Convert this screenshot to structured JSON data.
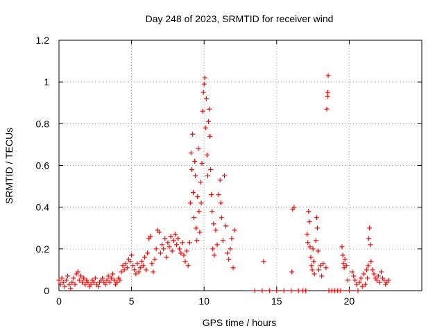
{
  "chart_data": {
    "type": "scatter",
    "title": "Day 248 of 2023, SRMTID for receiver wind",
    "xlabel": "GPS time / hours",
    "ylabel": "SRMTID / TECUs",
    "xlim": [
      0,
      25
    ],
    "ylim": [
      0,
      1.2
    ],
    "xticks": [
      0,
      5,
      10,
      15,
      20
    ],
    "xtick_labels": [
      "0",
      "5",
      "10",
      "15",
      "20"
    ],
    "yticks": [
      0,
      0.2,
      0.4,
      0.6,
      0.8,
      1,
      1.2
    ],
    "ytick_labels": [
      "0",
      "0.2",
      "0.4",
      "0.6",
      "0.8",
      "1",
      "1.2"
    ],
    "grid": true,
    "marker": "+",
    "series": [
      {
        "name": "wind",
        "color": "#ff0000",
        "points": [
          [
            0.0,
            0.05
          ],
          [
            0.1,
            0.03
          ],
          [
            0.2,
            0.06
          ],
          [
            0.3,
            0.04
          ],
          [
            0.4,
            0.02
          ],
          [
            0.5,
            0.05
          ],
          [
            0.6,
            0.07
          ],
          [
            0.7,
            0.03
          ],
          [
            0.8,
            0.01
          ],
          [
            0.9,
            0.04
          ],
          [
            1.0,
            0.06
          ],
          [
            1.1,
            0.03
          ],
          [
            1.2,
            0.08
          ],
          [
            1.3,
            0.09
          ],
          [
            1.4,
            0.05
          ],
          [
            1.5,
            0.07
          ],
          [
            1.6,
            0.04
          ],
          [
            1.7,
            0.06
          ],
          [
            1.8,
            0.03
          ],
          [
            1.9,
            0.05
          ],
          [
            2.0,
            0.04
          ],
          [
            2.1,
            0.02
          ],
          [
            2.2,
            0.03
          ],
          [
            2.3,
            0.05
          ],
          [
            2.4,
            0.04
          ],
          [
            2.5,
            0.06
          ],
          [
            2.6,
            0.03
          ],
          [
            2.7,
            0.02
          ],
          [
            2.8,
            0.04
          ],
          [
            2.9,
            0.05
          ],
          [
            3.0,
            0.06
          ],
          [
            3.1,
            0.04
          ],
          [
            3.2,
            0.03
          ],
          [
            3.3,
            0.05
          ],
          [
            3.4,
            0.07
          ],
          [
            3.5,
            0.04
          ],
          [
            3.6,
            0.06
          ],
          [
            3.7,
            0.08
          ],
          [
            3.8,
            0.05
          ],
          [
            3.9,
            0.03
          ],
          [
            4.0,
            0.04
          ],
          [
            4.1,
            0.06
          ],
          [
            4.2,
            0.05
          ],
          [
            4.3,
            0.09
          ],
          [
            4.4,
            0.12
          ],
          [
            4.5,
            0.1
          ],
          [
            4.6,
            0.13
          ],
          [
            4.7,
            0.11
          ],
          [
            4.8,
            0.15
          ],
          [
            4.9,
            0.14
          ],
          [
            5.0,
            0.17
          ],
          [
            5.1,
            0.12
          ],
          [
            5.2,
            0.1
          ],
          [
            5.3,
            0.08
          ],
          [
            5.4,
            0.13
          ],
          [
            5.5,
            0.09
          ],
          [
            5.6,
            0.11
          ],
          [
            5.7,
            0.14
          ],
          [
            5.8,
            0.12
          ],
          [
            5.9,
            0.16
          ],
          [
            6.0,
            0.1
          ],
          [
            6.1,
            0.18
          ],
          [
            6.2,
            0.25
          ],
          [
            6.3,
            0.26
          ],
          [
            6.4,
            0.13
          ],
          [
            6.5,
            0.09
          ],
          [
            6.6,
            0.15
          ],
          [
            6.7,
            0.2
          ],
          [
            6.8,
            0.29
          ],
          [
            6.9,
            0.28
          ],
          [
            7.0,
            0.18
          ],
          [
            7.1,
            0.22
          ],
          [
            7.2,
            0.2
          ],
          [
            7.3,
            0.25
          ],
          [
            7.4,
            0.16
          ],
          [
            7.5,
            0.23
          ],
          [
            7.6,
            0.21
          ],
          [
            7.7,
            0.26
          ],
          [
            7.8,
            0.19
          ],
          [
            7.9,
            0.24
          ],
          [
            8.0,
            0.27
          ],
          [
            8.1,
            0.22
          ],
          [
            8.2,
            0.25
          ],
          [
            8.3,
            0.2
          ],
          [
            8.4,
            0.18
          ],
          [
            8.5,
            0.23
          ],
          [
            8.6,
            0.17
          ],
          [
            8.7,
            0.14
          ],
          [
            8.8,
            0.19
          ],
          [
            8.9,
            0.12
          ],
          [
            9.0,
            0.23
          ],
          [
            9.05,
            0.42
          ],
          [
            9.1,
            0.66
          ],
          [
            9.15,
            0.58
          ],
          [
            9.2,
            0.75
          ],
          [
            9.25,
            0.47
          ],
          [
            9.3,
            0.35
          ],
          [
            9.35,
            0.62
          ],
          [
            9.4,
            0.55
          ],
          [
            9.45,
            0.3
          ],
          [
            9.5,
            0.24
          ],
          [
            9.55,
            0.45
          ],
          [
            9.6,
            0.68
          ],
          [
            9.65,
            0.38
          ],
          [
            9.7,
            0.28
          ],
          [
            9.75,
            0.52
          ],
          [
            9.8,
            0.42
          ],
          [
            9.85,
            0.61
          ],
          [
            9.9,
            0.86
          ],
          [
            9.95,
            0.95
          ],
          [
            10.0,
            0.99
          ],
          [
            10.05,
            1.02
          ],
          [
            10.1,
            0.78
          ],
          [
            10.15,
            0.92
          ],
          [
            10.2,
            0.65
          ],
          [
            10.25,
            0.55
          ],
          [
            10.3,
            0.81
          ],
          [
            10.35,
            0.87
          ],
          [
            10.4,
            0.74
          ],
          [
            10.45,
            0.58
          ],
          [
            10.5,
            0.46
          ],
          [
            10.55,
            0.38
          ],
          [
            10.6,
            0.2
          ],
          [
            10.65,
            0.32
          ],
          [
            10.7,
            0.17
          ],
          [
            10.8,
            0.29
          ],
          [
            10.9,
            0.22
          ],
          [
            11.0,
            0.46
          ],
          [
            11.1,
            0.53
          ],
          [
            11.15,
            0.42
          ],
          [
            11.2,
            0.35
          ],
          [
            11.3,
            0.24
          ],
          [
            11.4,
            0.55
          ],
          [
            11.5,
            0.31
          ],
          [
            11.6,
            0.18
          ],
          [
            11.7,
            0.15
          ],
          [
            11.8,
            0.2
          ],
          [
            11.9,
            0.25
          ],
          [
            12.0,
            0.11
          ],
          [
            12.1,
            0.29
          ],
          [
            13.5,
            0.0
          ],
          [
            14.0,
            0.0
          ],
          [
            14.1,
            0.14
          ],
          [
            14.5,
            0.0
          ],
          [
            15.0,
            0.0
          ],
          [
            15.5,
            0.0
          ],
          [
            16.0,
            0.0
          ],
          [
            16.05,
            0.09
          ],
          [
            16.1,
            0.39
          ],
          [
            16.2,
            0.4
          ],
          [
            16.5,
            0.0
          ],
          [
            16.8,
            0.0
          ],
          [
            17.0,
            0.0
          ],
          [
            17.1,
            0.27
          ],
          [
            17.15,
            0.23
          ],
          [
            17.2,
            0.38
          ],
          [
            17.25,
            0.33
          ],
          [
            17.3,
            0.21
          ],
          [
            17.35,
            0.16
          ],
          [
            17.4,
            0.12
          ],
          [
            17.45,
            0.1
          ],
          [
            17.5,
            0.2
          ],
          [
            17.55,
            0.14
          ],
          [
            17.6,
            0.08
          ],
          [
            17.7,
            0.24
          ],
          [
            17.75,
            0.35
          ],
          [
            17.8,
            0.3
          ],
          [
            17.85,
            0.19
          ],
          [
            17.9,
            0.1
          ],
          [
            18.0,
            0.12
          ],
          [
            18.1,
            0.07
          ],
          [
            18.2,
            0.13
          ],
          [
            18.4,
            0.11
          ],
          [
            18.45,
            0.87
          ],
          [
            18.5,
            0.93
          ],
          [
            18.52,
            0.95
          ],
          [
            18.55,
            1.03
          ],
          [
            18.6,
            0.0
          ],
          [
            18.8,
            0.0
          ],
          [
            19.0,
            0.0
          ],
          [
            19.2,
            0.0
          ],
          [
            19.4,
            0.0
          ],
          [
            19.5,
            0.21
          ],
          [
            19.55,
            0.17
          ],
          [
            19.6,
            0.13
          ],
          [
            19.65,
            0.11
          ],
          [
            19.7,
            0.15
          ],
          [
            19.8,
            0.12
          ],
          [
            19.9,
            0.05
          ],
          [
            20.0,
            0.0
          ],
          [
            20.2,
            0.09
          ],
          [
            20.3,
            0.07
          ],
          [
            20.4,
            0.05
          ],
          [
            20.5,
            0.03
          ],
          [
            20.6,
            0.0
          ],
          [
            20.7,
            0.04
          ],
          [
            20.8,
            0.06
          ],
          [
            20.9,
            0.02
          ],
          [
            21.0,
            0.08
          ],
          [
            21.1,
            0.03
          ],
          [
            21.2,
            0.1
          ],
          [
            21.25,
            0.06
          ],
          [
            21.3,
            0.12
          ],
          [
            21.35,
            0.25
          ],
          [
            21.4,
            0.3
          ],
          [
            21.45,
            0.22
          ],
          [
            21.5,
            0.14
          ],
          [
            21.6,
            0.1
          ],
          [
            21.7,
            0.08
          ],
          [
            21.8,
            0.06
          ],
          [
            21.9,
            0.05
          ],
          [
            22.0,
            0.07
          ],
          [
            22.1,
            0.04
          ],
          [
            22.2,
            0.09
          ],
          [
            22.3,
            0.06
          ],
          [
            22.4,
            0.05
          ],
          [
            22.5,
            0.03
          ],
          [
            22.6,
            0.04
          ],
          [
            22.7,
            0.05
          ]
        ]
      }
    ]
  }
}
